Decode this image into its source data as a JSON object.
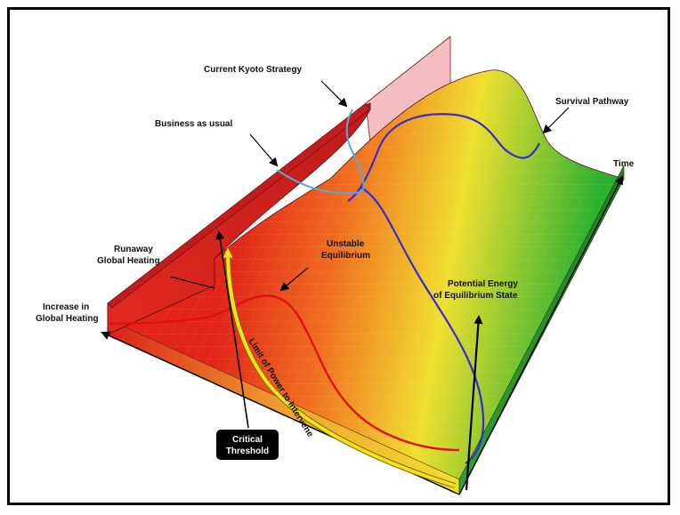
{
  "labels": {
    "current_kyoto": "Current Kyoto Strategy",
    "business_as_usual": "Business as usual",
    "survival_pathway": "Survival Pathway",
    "time_axis": "Time",
    "runaway_line1": "Runaway",
    "runaway_line2": "Global Heating",
    "unstable_line1": "Unstable",
    "unstable_line2": "Equilibrium",
    "potential_line1": "Potential Energy",
    "potential_line2": "of Equilibrium State",
    "increase_line1": "Increase in",
    "increase_line2": "Global Heating",
    "limit_power": "Limit of Power to Intervene",
    "critical_line1": "Critical",
    "critical_line2": "Threshold"
  },
  "colors": {
    "business_as_usual_curve": "#5aa8d8",
    "survival_curve": "#3a2ad0",
    "unstable_curve": "#e01010",
    "limit_arrow": "#f5e020",
    "wall_red": "#d42020",
    "surface_green": "#30b030"
  }
}
